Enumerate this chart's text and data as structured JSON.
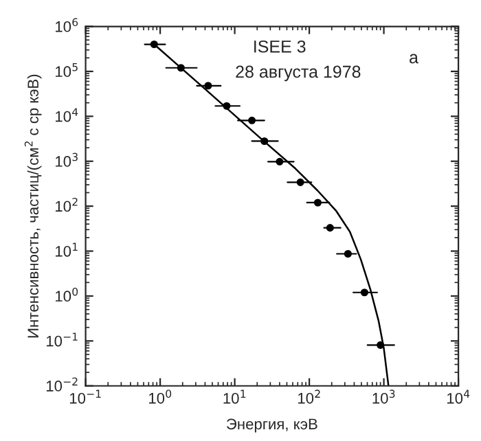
{
  "chart_data": {
    "type": "scatter",
    "xlabel": "Энергия, кэВ",
    "ylabel": "Интенсивность, частиц/(см$^{2}$ с ср кэВ)",
    "annotations": [
      "ISEE 3",
      "28 августа 1978",
      "а"
    ],
    "log": "xy",
    "xlim": [
      0.1,
      10000
    ],
    "ylim": [
      0.01,
      1000000
    ],
    "xticks": [
      {
        "value": 0.1,
        "label": "10$^{−1}$"
      },
      {
        "value": 1,
        "label": "10$^{0}$"
      },
      {
        "value": 10,
        "label": "10$^{1}$"
      },
      {
        "value": 100,
        "label": "10$^{2}$"
      },
      {
        "value": 1000,
        "label": "10$^{3}$"
      },
      {
        "value": 10000,
        "label": "10$^{4}$"
      }
    ],
    "yticks": [
      {
        "value": 0.01,
        "label": "10$^{−2}$"
      },
      {
        "value": 0.1,
        "label": "10$^{−1}$"
      },
      {
        "value": 1,
        "label": "10$^{0}$"
      },
      {
        "value": 10,
        "label": "10$^{1}$"
      },
      {
        "value": 100,
        "label": "10$^{2}$"
      },
      {
        "value": 1000,
        "label": "10$^{3}$"
      },
      {
        "value": 10000,
        "label": "10$^{4}$"
      },
      {
        "value": 100000,
        "label": "10$^{5}$"
      },
      {
        "value": 1000000,
        "label": "10$^{6}$"
      }
    ],
    "grid": false,
    "legend": false,
    "series": [
      {
        "color": "#000000",
        "marker": "circle",
        "x": [
          0.83,
          1.9,
          4.4,
          7.8,
          17,
          25,
          40,
          76,
          130,
          190,
          330,
          550,
          900
        ],
        "values": [
          400000,
          120000,
          48000,
          17000,
          8100,
          2800,
          980,
          340,
          120,
          33,
          8.7,
          1.2,
          0.081
        ],
        "xerrors": [
          [
            0.62,
            1.17
          ],
          [
            1.2,
            3.1
          ],
          [
            3.1,
            6.5
          ],
          [
            5.5,
            11.7
          ],
          [
            11,
            25
          ],
          [
            17,
            38
          ],
          [
            28,
            62
          ],
          [
            51,
            107
          ],
          [
            93,
            186
          ],
          [
            158,
            263
          ],
          [
            234,
            427
          ],
          [
            389,
            813
          ],
          [
            603,
            1380
          ]
        ]
      },
      {
        "type": "line",
        "color": "#000000",
        "marker": "none",
        "line_style": "solid",
        "x": [
          0.83,
          4.1,
          22,
          65,
          130,
          230,
          350,
          490,
          660,
          850,
          1000,
          1150
        ],
        "values": [
          400000,
          39000,
          3300,
          690,
          220,
          78,
          27,
          6.6,
          1.4,
          0.28,
          0.068,
          0.0105
        ]
      }
    ]
  }
}
